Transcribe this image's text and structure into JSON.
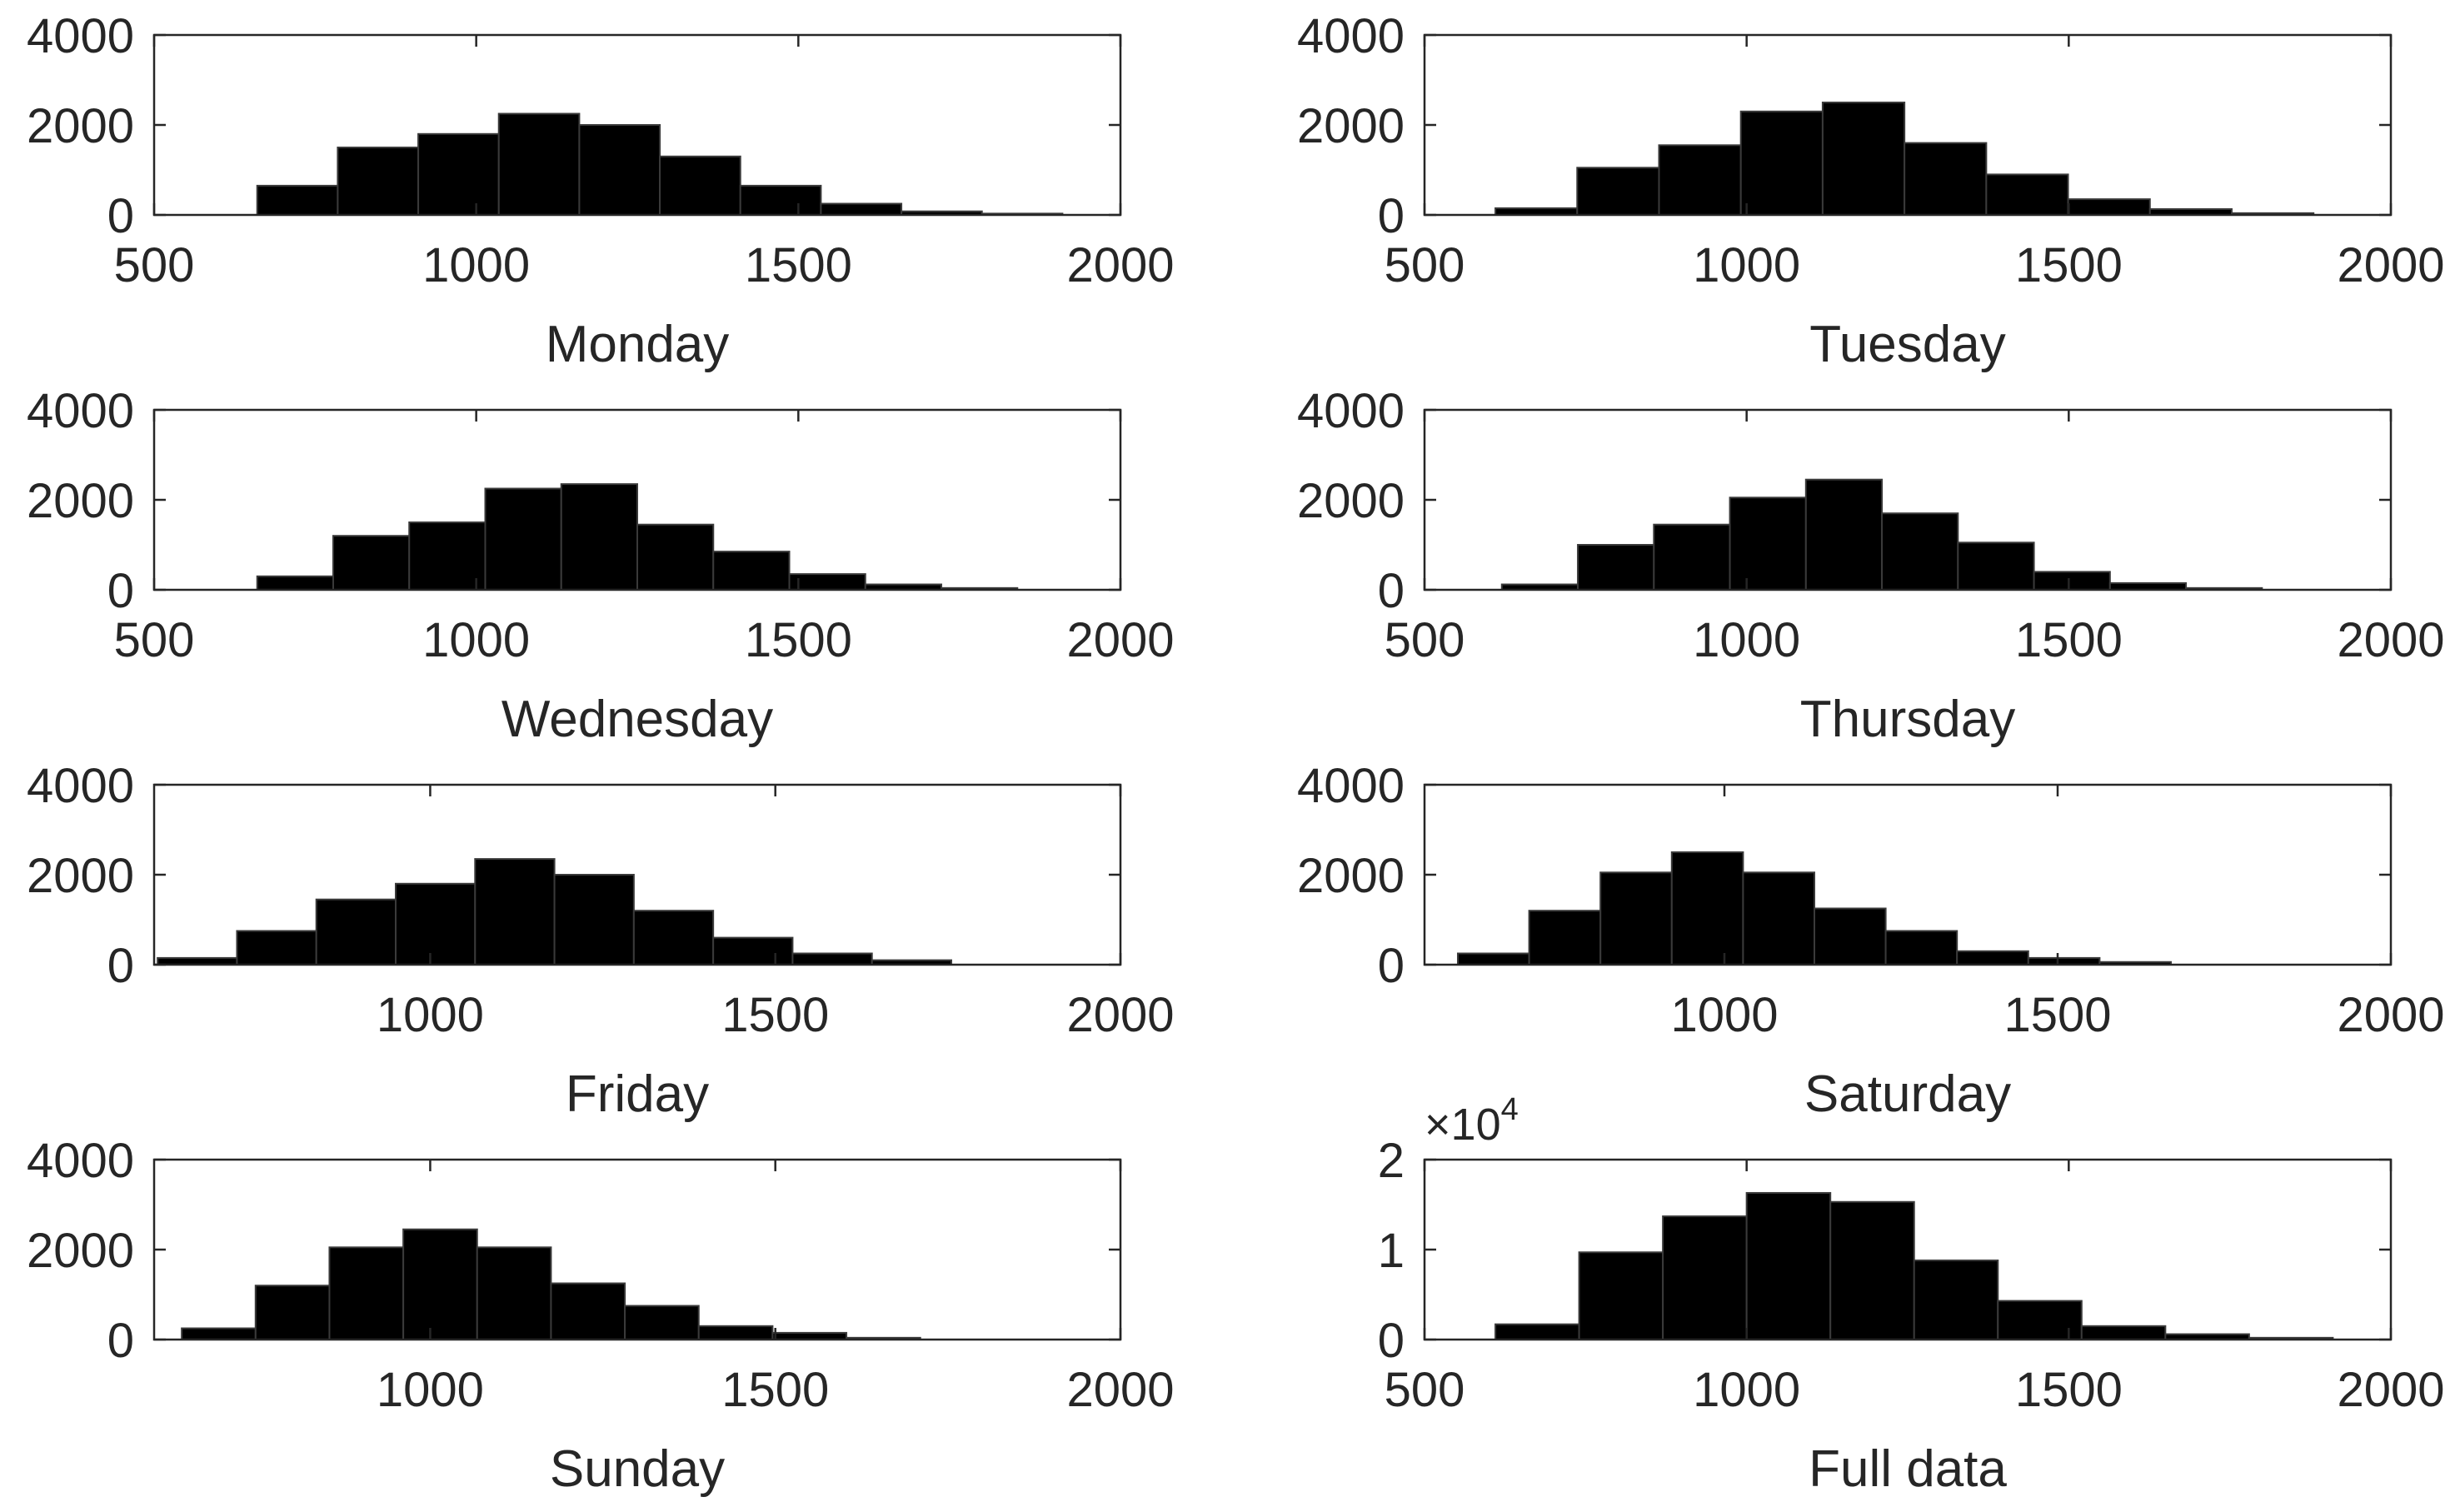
{
  "chart_data": [
    {
      "type": "bar",
      "title": "",
      "xlabel": "Monday",
      "ylabel": "",
      "xlim": [
        500,
        2000
      ],
      "ylim": [
        0,
        4000
      ],
      "xticks": [
        500,
        1000,
        1500,
        2000
      ],
      "xtick_labels": [
        "500",
        "1000",
        "1500",
        "2000"
      ],
      "yticks": [
        0,
        2000,
        4000
      ],
      "ytick_labels": [
        "0",
        "2000",
        "4000"
      ],
      "bin_edges": [
        660,
        785,
        910,
        1035,
        1160,
        1285,
        1410,
        1535,
        1660,
        1785,
        1910
      ],
      "values": [
        650,
        1500,
        1800,
        2250,
        2000,
        1300,
        650,
        250,
        80,
        30
      ]
    },
    {
      "type": "bar",
      "title": "",
      "xlabel": "Tuesday",
      "ylabel": "",
      "xlim": [
        500,
        2000
      ],
      "ylim": [
        0,
        4000
      ],
      "xticks": [
        500,
        1000,
        1500,
        2000
      ],
      "xtick_labels": [
        "500",
        "1000",
        "1500",
        "2000"
      ],
      "yticks": [
        0,
        2000,
        4000
      ],
      "ytick_labels": [
        "0",
        "2000",
        "4000"
      ],
      "bin_edges": [
        610,
        737,
        864,
        991,
        1118,
        1245,
        1372,
        1499,
        1626,
        1753,
        1880
      ],
      "values": [
        150,
        1050,
        1550,
        2300,
        2500,
        1600,
        900,
        350,
        130,
        40
      ]
    },
    {
      "type": "bar",
      "title": "",
      "xlabel": "Wednesday",
      "ylabel": "",
      "xlim": [
        500,
        2000
      ],
      "ylim": [
        0,
        4000
      ],
      "xticks": [
        500,
        1000,
        1500,
        2000
      ],
      "xtick_labels": [
        "500",
        "1000",
        "1500",
        "2000"
      ],
      "yticks": [
        0,
        2000,
        4000
      ],
      "ytick_labels": [
        "0",
        "2000",
        "4000"
      ],
      "bin_edges": [
        660,
        778,
        896,
        1014,
        1132,
        1250,
        1368,
        1486,
        1604,
        1722,
        1840
      ],
      "values": [
        300,
        1200,
        1500,
        2250,
        2350,
        1450,
        850,
        350,
        120,
        40
      ]
    },
    {
      "type": "bar",
      "title": "",
      "xlabel": "Thursday",
      "ylabel": "",
      "xlim": [
        500,
        2000
      ],
      "ylim": [
        0,
        4000
      ],
      "xticks": [
        500,
        1000,
        1500,
        2000
      ],
      "xtick_labels": [
        "500",
        "1000",
        "1500",
        "2000"
      ],
      "yticks": [
        0,
        2000,
        4000
      ],
      "ytick_labels": [
        "0",
        "2000",
        "4000"
      ],
      "bin_edges": [
        620,
        738,
        856,
        974,
        1092,
        1210,
        1328,
        1446,
        1564,
        1682,
        1800
      ],
      "values": [
        120,
        1000,
        1450,
        2050,
        2450,
        1700,
        1050,
        400,
        150,
        40
      ]
    },
    {
      "type": "bar",
      "title": "",
      "xlabel": "Friday",
      "ylabel": "",
      "xlim": [
        600,
        2000
      ],
      "ylim": [
        0,
        4000
      ],
      "xticks": [
        1000,
        1500,
        2000
      ],
      "xtick_labels": [
        "1000",
        "1500",
        "2000"
      ],
      "yticks": [
        0,
        2000,
        4000
      ],
      "ytick_labels": [
        "0",
        "2000",
        "4000"
      ],
      "bin_edges": [
        605,
        720,
        835,
        950,
        1065,
        1180,
        1295,
        1410,
        1525,
        1640,
        1755
      ],
      "values": [
        150,
        750,
        1450,
        1800,
        2350,
        2000,
        1200,
        600,
        250,
        100
      ]
    },
    {
      "type": "bar",
      "title": "",
      "xlabel": "Saturday",
      "ylabel": "",
      "xlim": [
        550,
        2000
      ],
      "ylim": [
        0,
        4000
      ],
      "xticks": [
        1000,
        1500,
        2000
      ],
      "xtick_labels": [
        "1000",
        "1500",
        "2000"
      ],
      "yticks": [
        0,
        2000,
        4000
      ],
      "ytick_labels": [
        "0",
        "2000",
        "4000"
      ],
      "bin_edges": [
        600,
        707,
        814,
        921,
        1028,
        1135,
        1242,
        1349,
        1456,
        1563,
        1670
      ],
      "values": [
        250,
        1200,
        2050,
        2500,
        2050,
        1250,
        750,
        300,
        150,
        60
      ]
    },
    {
      "type": "bar",
      "title": "",
      "xlabel": "Sunday",
      "ylabel": "",
      "xlim": [
        600,
        2000
      ],
      "ylim": [
        0,
        4000
      ],
      "xticks": [
        1000,
        1500,
        2000
      ],
      "xtick_labels": [
        "1000",
        "1500",
        "2000"
      ],
      "yticks": [
        0,
        2000,
        4000
      ],
      "ytick_labels": [
        "0",
        "2000",
        "4000"
      ],
      "bin_edges": [
        640,
        747,
        854,
        961,
        1068,
        1175,
        1282,
        1389,
        1496,
        1603,
        1710
      ],
      "values": [
        250,
        1200,
        2050,
        2450,
        2050,
        1250,
        750,
        300,
        150,
        40
      ]
    },
    {
      "type": "bar",
      "title": "",
      "xlabel": "Full data",
      "ylabel": "",
      "xlim": [
        500,
        2000
      ],
      "ylim": [
        0,
        2
      ],
      "y_exponent_label": "×10",
      "y_exponent_power": "4",
      "xticks": [
        500,
        1000,
        1500,
        2000
      ],
      "xtick_labels": [
        "500",
        "1000",
        "1500",
        "2000"
      ],
      "yticks": [
        0,
        1,
        2
      ],
      "ytick_labels": [
        "0",
        "1",
        "2"
      ],
      "bin_edges": [
        610,
        740,
        870,
        1000,
        1130,
        1260,
        1390,
        1520,
        1650,
        1780,
        1910
      ],
      "values": [
        0.17,
        0.97,
        1.37,
        1.63,
        1.53,
        0.88,
        0.43,
        0.15,
        0.06,
        0.02
      ]
    }
  ]
}
